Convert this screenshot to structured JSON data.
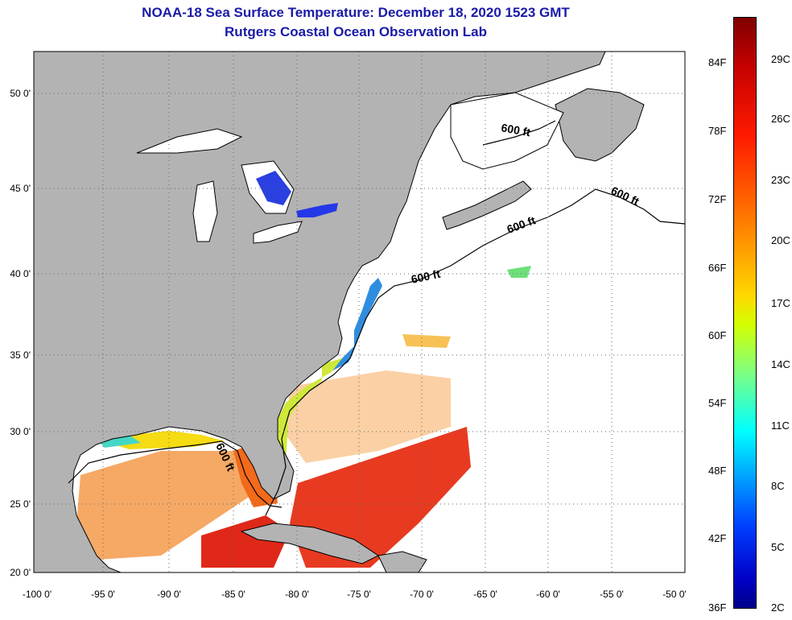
{
  "header": {
    "title": "NOAA-18 Sea Surface Temperature:  December 18, 2020 1523 GMT",
    "subtitle": "Rutgers Coastal Ocean Observation Lab"
  },
  "map": {
    "lat_ticks": [
      "50 0'",
      "45 0'",
      "40 0'",
      "35 0'",
      "30 0'",
      "25 0'",
      "20 0'"
    ],
    "lon_ticks": [
      "-100 0'",
      "-95 0'",
      "-90 0'",
      "-85 0'",
      "-80 0'",
      "-75 0'",
      "-70 0'",
      "-65 0'",
      "-60 0'",
      "-55 0'",
      "-50 0'"
    ],
    "contour_labels": [
      "600 ft",
      "600 ft",
      "600 ft",
      "600 ft",
      "600 ft"
    ]
  },
  "colorbar": {
    "fahrenheit_labels": [
      "84F",
      "78F",
      "72F",
      "66F",
      "60F",
      "54F",
      "48F",
      "42F",
      "36F"
    ],
    "celsius_labels": [
      "29C",
      "26C",
      "23C",
      "20C",
      "17C",
      "14C",
      "11C",
      "8C",
      "5C",
      "2C"
    ]
  },
  "colors": {
    "land": "#b3b3b3",
    "ocean_missing": "#ffffff",
    "title": "#1a1aa8",
    "warm": "#e8321e",
    "cold": "#1a2ee6"
  }
}
